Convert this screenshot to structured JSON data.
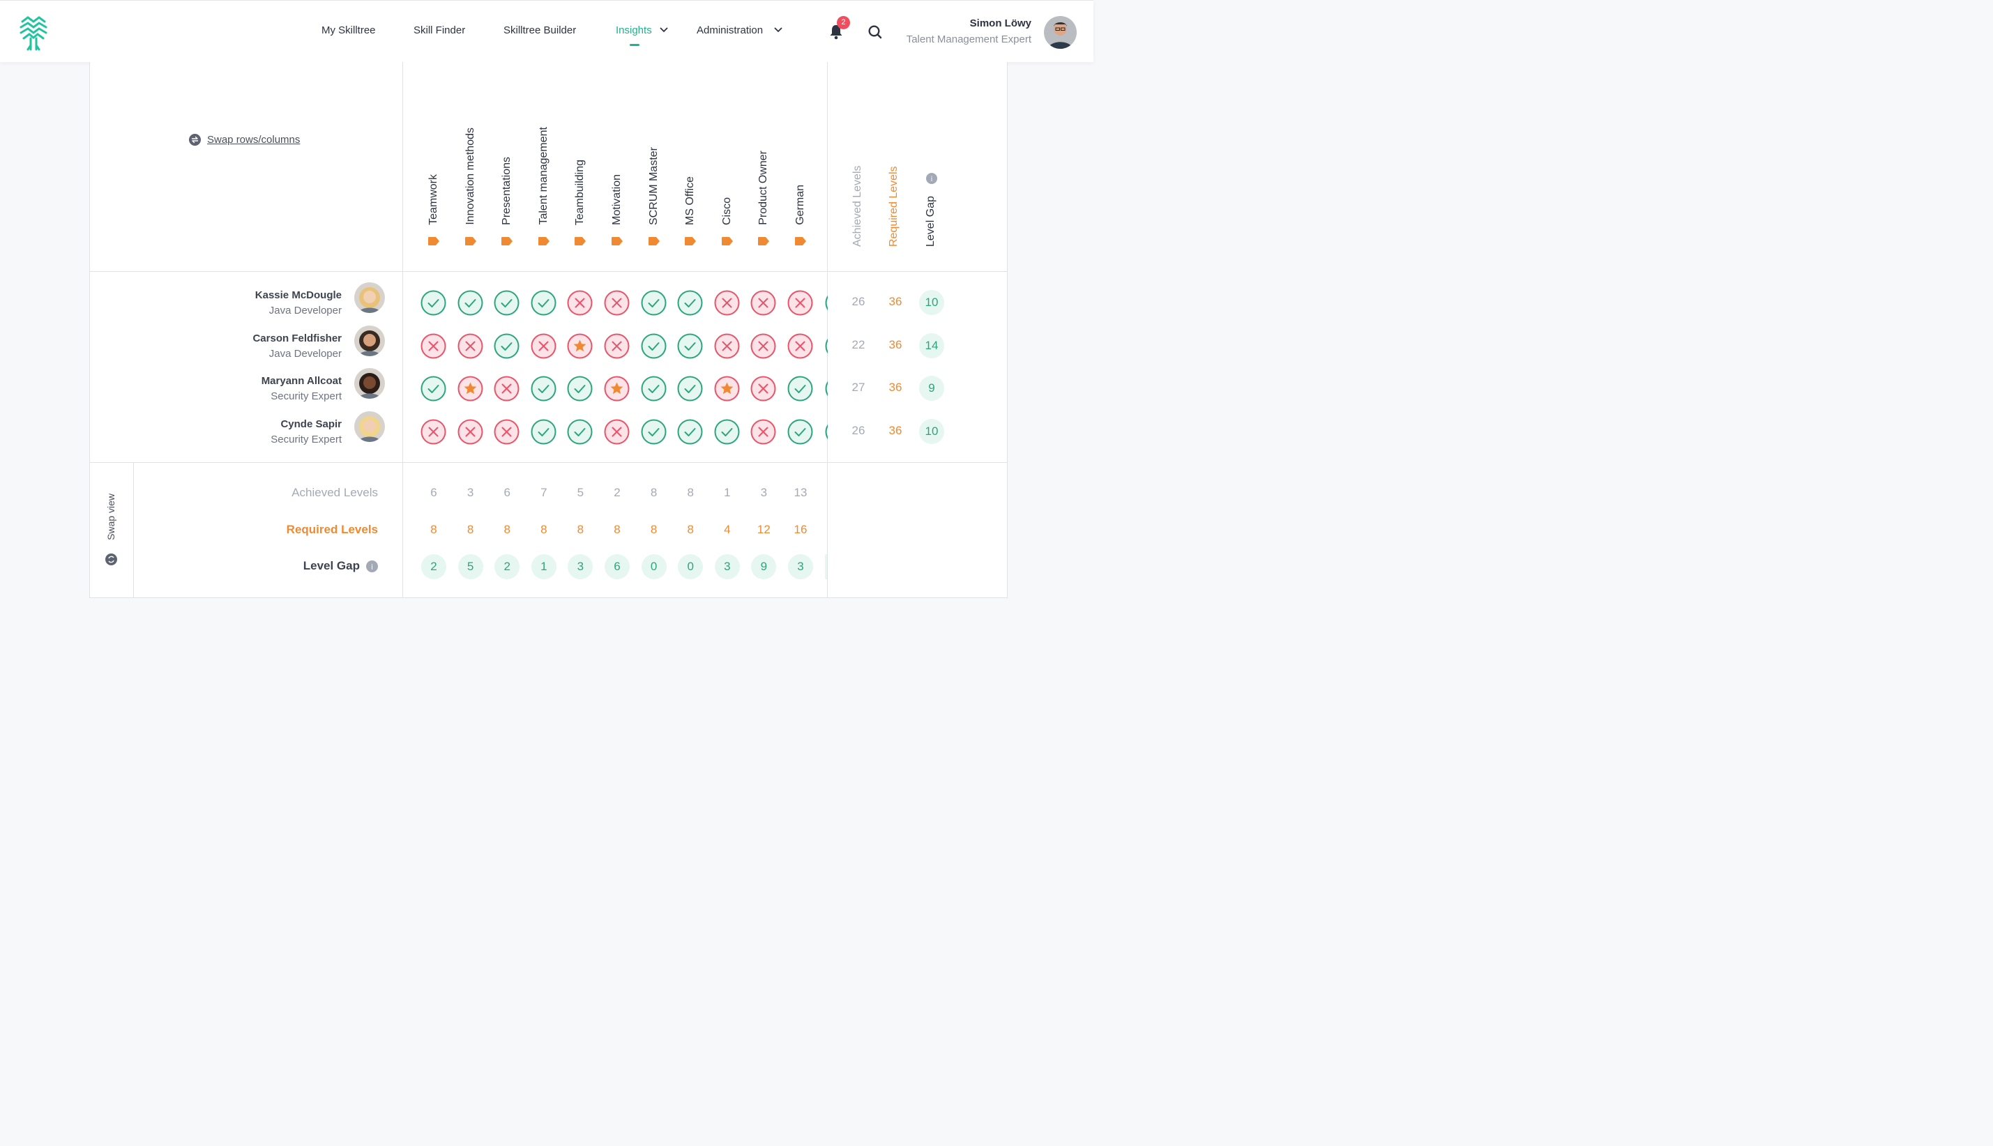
{
  "nav": {
    "items": [
      {
        "label": "My Skilltree"
      },
      {
        "label": "Skill Finder"
      },
      {
        "label": "Skilltree Builder"
      },
      {
        "label": "Insights"
      },
      {
        "label": "Administration"
      }
    ],
    "active": "Insights",
    "notification_count": "2"
  },
  "user": {
    "name": "Simon Löwy",
    "role": "Talent Management Expert"
  },
  "matrix": {
    "swap_rows_label": "Swap rows/columns",
    "swap_view_label": "Swap view",
    "skills": [
      "Teamwork",
      "Innovation methods",
      "Presentations",
      "Talent management",
      "Teambuilding",
      "Motivation",
      "SCRUM Master",
      "MS Office",
      "Cisco",
      "Product Owner",
      "German"
    ],
    "summary_headers": {
      "achieved": "Achieved Levels",
      "required": "Required Levels",
      "gap": "Level Gap"
    },
    "people": [
      {
        "name": "Kassie McDougle",
        "role": "Java Developer",
        "cells": [
          "ok",
          "ok",
          "ok",
          "ok",
          "no",
          "no",
          "ok",
          "ok",
          "no",
          "no",
          "no"
        ],
        "achieved": "26",
        "required": "36",
        "gap": "10"
      },
      {
        "name": "Carson Feldfisher",
        "role": "Java Developer",
        "cells": [
          "no",
          "no",
          "ok",
          "no",
          "star",
          "no",
          "ok",
          "ok",
          "no",
          "no",
          "no"
        ],
        "achieved": "22",
        "required": "36",
        "gap": "14"
      },
      {
        "name": "Maryann Allcoat",
        "role": "Security Expert",
        "cells": [
          "ok",
          "star",
          "no",
          "ok",
          "ok",
          "star",
          "ok",
          "ok",
          "star",
          "no",
          "ok"
        ],
        "achieved": "27",
        "required": "36",
        "gap": "9"
      },
      {
        "name": "Cynde Sapir",
        "role": "Security Expert",
        "cells": [
          "no",
          "no",
          "no",
          "ok",
          "ok",
          "no",
          "ok",
          "ok",
          "ok",
          "no",
          "ok"
        ],
        "achieved": "26",
        "required": "36",
        "gap": "10"
      }
    ],
    "footer": {
      "achieved_label": "Achieved Levels",
      "required_label": "Required Levels",
      "gap_label": "Level Gap",
      "achieved": [
        "6",
        "3",
        "6",
        "7",
        "5",
        "2",
        "8",
        "8",
        "1",
        "3",
        "13"
      ],
      "required": [
        "8",
        "8",
        "8",
        "8",
        "8",
        "8",
        "8",
        "8",
        "4",
        "12",
        "16"
      ],
      "gap": [
        "2",
        "5",
        "2",
        "1",
        "3",
        "6",
        "0",
        "0",
        "3",
        "9",
        "3"
      ]
    }
  },
  "colors": {
    "accent": "#1fb28c",
    "required": "#f08a32",
    "ok": "#2ca57f",
    "no": "#e8546a",
    "star": "#f08a32"
  }
}
